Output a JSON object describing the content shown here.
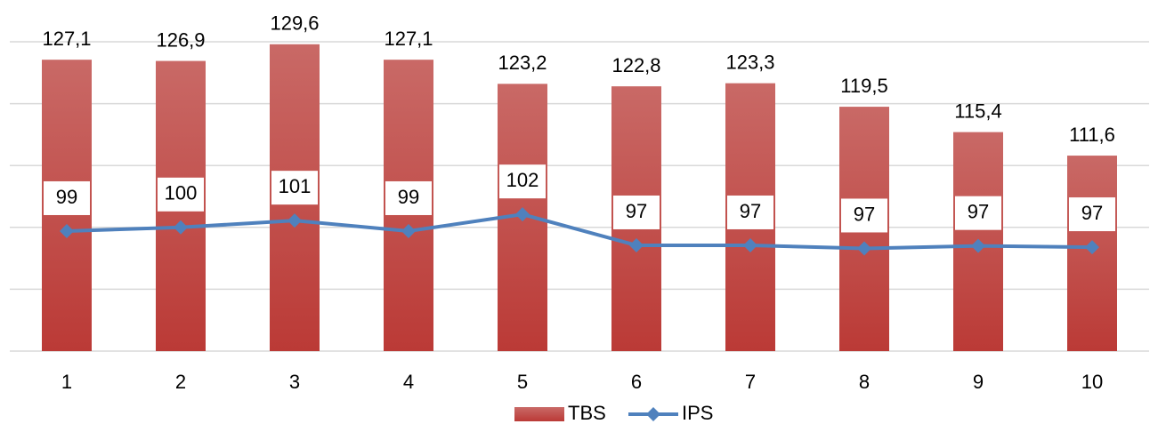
{
  "chart_data": {
    "type": "bar_line",
    "categories": [
      "1",
      "2",
      "3",
      "4",
      "5",
      "6",
      "7",
      "8",
      "9",
      "10"
    ],
    "series": [
      {
        "name": "TBS",
        "type": "bar",
        "color": "#c0504d",
        "values": [
          127.1,
          126.9,
          129.6,
          127.1,
          123.2,
          122.8,
          123.3,
          119.5,
          115.4,
          111.6
        ],
        "value_labels": [
          "127,1",
          "126,9",
          "129,6",
          "127,1",
          "123,2",
          "122,8",
          "123,3",
          "119,5",
          "115,4",
          "111,6"
        ]
      },
      {
        "name": "IPS",
        "type": "line",
        "color": "#4f81bd",
        "values": [
          99.4,
          100,
          101.1,
          99.4,
          102.1,
          97.1,
          97.1,
          96.6,
          97.0,
          96.8
        ],
        "value_labels": [
          "99",
          "100",
          "101",
          "99",
          "102",
          "97",
          "97",
          "97",
          "97",
          "97"
        ]
      }
    ],
    "ylim": [
      80,
      130
    ],
    "yticks": [
      80,
      90,
      100,
      110,
      120,
      130
    ],
    "grid": true,
    "legend": "bottom"
  }
}
